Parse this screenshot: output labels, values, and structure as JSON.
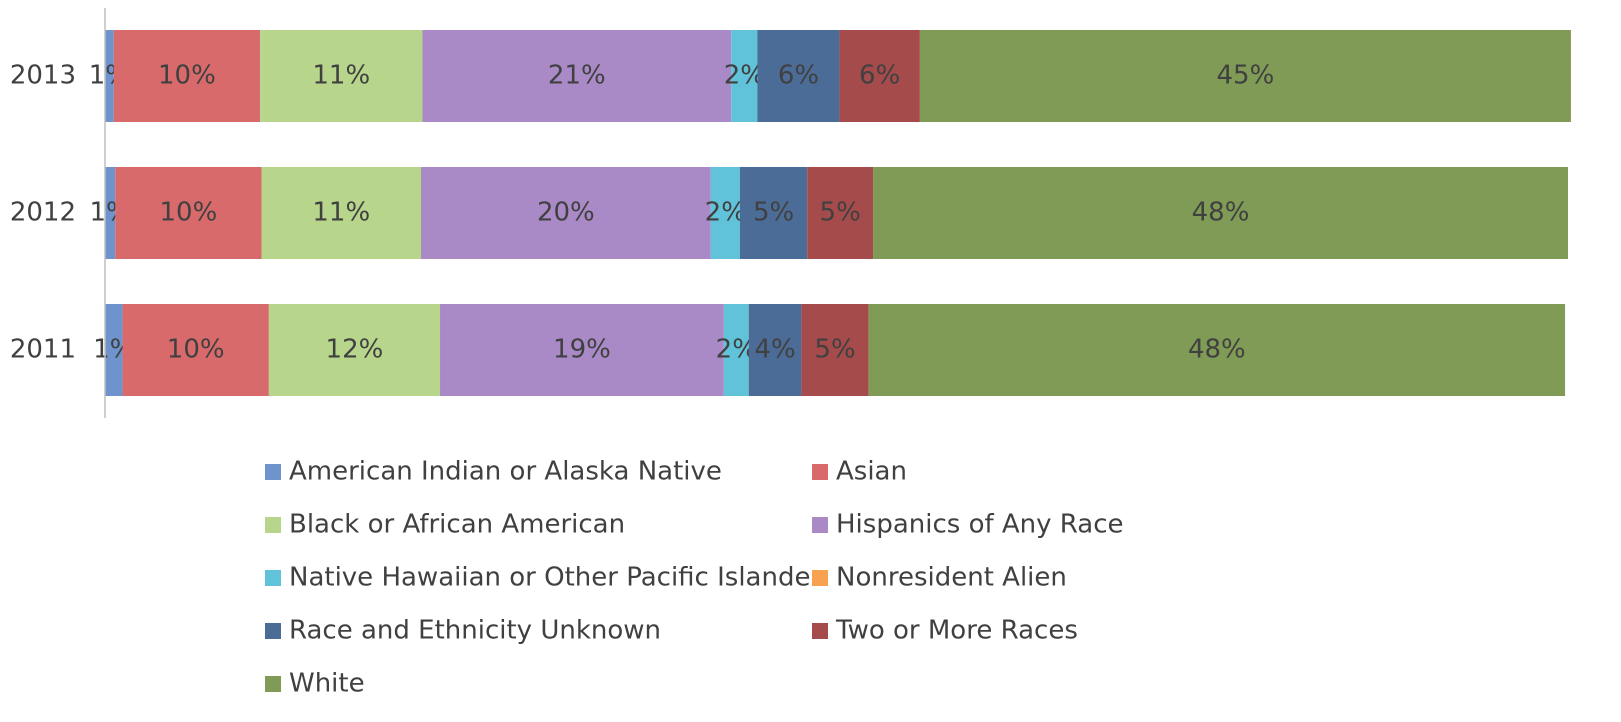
{
  "chart_data": {
    "type": "stacked_barh",
    "categories": [
      "2011",
      "2012",
      "2013"
    ],
    "xlim": [
      0,
      100
    ],
    "legend": "bottom",
    "series": [
      {
        "name": "American Indian or Alaska Native",
        "color": "#6f94cd",
        "values": [
          1.2,
          0.7,
          0.6
        ],
        "value_labels": [
          "1%",
          "1%",
          "1%"
        ]
      },
      {
        "name": "Asian",
        "color": "#d96a6b",
        "values": [
          10.0,
          10.0,
          10.0
        ],
        "value_labels": [
          "10%",
          "10%",
          "10%"
        ]
      },
      {
        "name": "Black or African American",
        "color": "#b7d68c",
        "values": [
          11.7,
          10.9,
          11.1
        ],
        "value_labels": [
          "12%",
          "11%",
          "11%"
        ]
      },
      {
        "name": "Hispanics of Any Race",
        "color": "#a98ac6",
        "values": [
          19.4,
          19.8,
          21.1
        ],
        "value_labels": [
          "19%",
          "20%",
          "21%"
        ]
      },
      {
        "name": "Native Hawaiian or Other Pacific Islander",
        "color": "#60c3da",
        "values": [
          1.7,
          2.0,
          1.8
        ],
        "value_labels": [
          "2%",
          "2%",
          "2%"
        ]
      },
      {
        "name": "Nonresident Alien",
        "color": "#f8a24f",
        "values": [
          0,
          0,
          0
        ],
        "value_labels": [
          null,
          null,
          null
        ]
      },
      {
        "name": "Race and Ethnicity Unknown",
        "color": "#4c6c98",
        "values": [
          3.6,
          4.6,
          5.6
        ],
        "value_labels": [
          "4%",
          "5%",
          "6%"
        ]
      },
      {
        "name": "Two or More Races",
        "color": "#a54b4b",
        "values": [
          4.6,
          4.5,
          5.5
        ],
        "value_labels": [
          "5%",
          "5%",
          "6%"
        ]
      },
      {
        "name": "White",
        "color": "#809b56",
        "values": [
          47.6,
          47.5,
          44.5
        ],
        "value_labels": [
          "48%",
          "48%",
          "45%"
        ]
      }
    ]
  }
}
